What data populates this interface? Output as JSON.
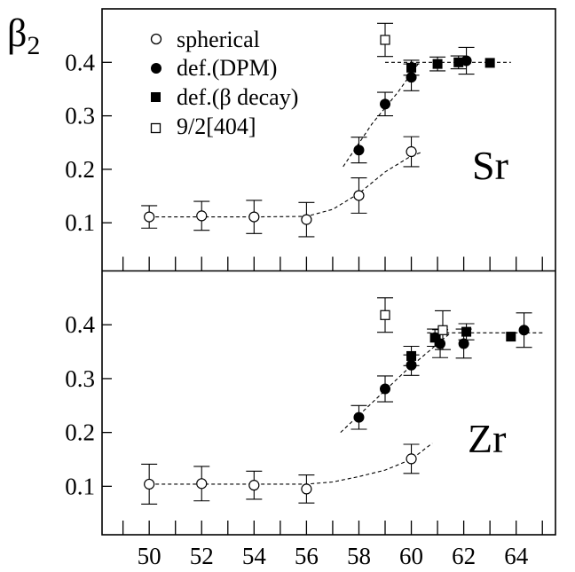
{
  "chart_data": [
    {
      "type": "scatter",
      "panel_label": "Sr",
      "ylabel": "β",
      "ylabel_subscript": "2",
      "xlim": [
        48.2,
        65.5
      ],
      "ylim": [
        0.01,
        0.5
      ],
      "ytick_labels": [
        "0.1",
        "0.2",
        "0.3",
        "0.4"
      ],
      "yticks": [
        0.1,
        0.2,
        0.3,
        0.4
      ],
      "xticks": [
        49,
        50,
        51,
        52,
        53,
        54,
        55,
        56,
        57,
        58,
        59,
        60,
        61,
        62,
        63,
        64,
        65
      ],
      "legend": [
        {
          "marker": "open-circle",
          "label": "spherical"
        },
        {
          "marker": "filled-circle",
          "label": "def.(DPM)"
        },
        {
          "marker": "filled-square",
          "label": "def.(β decay)"
        },
        {
          "marker": "open-square",
          "label": "9/2[404]"
        }
      ],
      "series": [
        {
          "name": "spherical",
          "marker": "open-circle",
          "points": [
            {
              "x": 50,
              "y": 0.111,
              "err": 0.021
            },
            {
              "x": 52,
              "y": 0.113,
              "err": 0.027
            },
            {
              "x": 54,
              "y": 0.111,
              "err": 0.031
            },
            {
              "x": 56,
              "y": 0.106,
              "err": 0.032
            },
            {
              "x": 58,
              "y": 0.151,
              "err": 0.033
            },
            {
              "x": 60,
              "y": 0.233,
              "err": 0.028
            }
          ]
        },
        {
          "name": "def.(DPM)",
          "marker": "filled-circle",
          "points": [
            {
              "x": 58,
              "y": 0.236,
              "err": 0.024
            },
            {
              "x": 59,
              "y": 0.322,
              "err": 0.022
            },
            {
              "x": 60,
              "y": 0.372,
              "err": 0.025
            },
            {
              "x": 62.1,
              "y": 0.403,
              "err": 0.025
            }
          ]
        },
        {
          "name": "def.(β decay)",
          "marker": "filled-square",
          "points": [
            {
              "x": 60,
              "y": 0.39,
              "err": 0.014
            },
            {
              "x": 61,
              "y": 0.397,
              "err": 0.013
            },
            {
              "x": 61.8,
              "y": 0.4,
              "err": 0.012
            },
            {
              "x": 63,
              "y": 0.399,
              "err": 0
            }
          ]
        },
        {
          "name": "9/2[404]",
          "marker": "open-square",
          "points": [
            {
              "x": 59,
              "y": 0.442,
              "err": 0.031
            }
          ]
        }
      ],
      "guide_lines": [
        {
          "kind": "spherical-trend",
          "points": [
            [
              50,
              0.111
            ],
            [
              54,
              0.111
            ],
            [
              56,
              0.112
            ],
            [
              57,
              0.125
            ],
            [
              58,
              0.155
            ],
            [
              59,
              0.195
            ],
            [
              60,
              0.225
            ],
            [
              60.4,
              0.232
            ]
          ]
        },
        {
          "kind": "deformation-rise",
          "points": [
            [
              57.4,
              0.205
            ],
            [
              58.5,
              0.285
            ],
            [
              59.5,
              0.345
            ],
            [
              60.3,
              0.4
            ]
          ]
        },
        {
          "kind": "saturation",
          "points": [
            [
              59,
              0.4
            ],
            [
              63.8,
              0.4
            ]
          ]
        }
      ]
    },
    {
      "type": "scatter",
      "panel_label": "Zr",
      "xlim": [
        48.2,
        65.5
      ],
      "ylim": [
        0.01,
        0.5
      ],
      "ytick_labels": [
        "0.1",
        "0.2",
        "0.3",
        "0.4"
      ],
      "yticks": [
        0.1,
        0.2,
        0.3,
        0.4
      ],
      "xtick_labels": [
        "50",
        "52",
        "54",
        "56",
        "58",
        "60",
        "62",
        "64"
      ],
      "xtick_values": [
        50,
        52,
        54,
        56,
        58,
        60,
        62,
        64
      ],
      "xticks": [
        49,
        50,
        51,
        52,
        53,
        54,
        55,
        56,
        57,
        58,
        59,
        60,
        61,
        62,
        63,
        64,
        65
      ],
      "series": [
        {
          "name": "spherical",
          "marker": "open-circle",
          "points": [
            {
              "x": 50,
              "y": 0.104,
              "err": 0.037
            },
            {
              "x": 52,
              "y": 0.105,
              "err": 0.032
            },
            {
              "x": 54,
              "y": 0.102,
              "err": 0.026
            },
            {
              "x": 56,
              "y": 0.095,
              "err": 0.026
            },
            {
              "x": 60,
              "y": 0.151,
              "err": 0.027
            }
          ]
        },
        {
          "name": "def.(DPM)",
          "marker": "filled-circle",
          "points": [
            {
              "x": 58,
              "y": 0.228,
              "err": 0.022
            },
            {
              "x": 59,
              "y": 0.281,
              "err": 0.024
            },
            {
              "x": 60,
              "y": 0.325,
              "err": 0.019
            },
            {
              "x": 61.1,
              "y": 0.365,
              "err": 0.026
            },
            {
              "x": 62,
              "y": 0.365,
              "err": 0.027
            },
            {
              "x": 64.3,
              "y": 0.39,
              "err": 0.032
            }
          ]
        },
        {
          "name": "def.(β decay)",
          "marker": "filled-square",
          "points": [
            {
              "x": 60,
              "y": 0.342,
              "err": 0.018
            },
            {
              "x": 60.9,
              "y": 0.376,
              "err": 0.016
            },
            {
              "x": 62.1,
              "y": 0.387,
              "err": 0.015
            },
            {
              "x": 63.8,
              "y": 0.378,
              "err": 0
            }
          ]
        },
        {
          "name": "9/2[404]",
          "marker": "open-square",
          "points": [
            {
              "x": 59,
              "y": 0.418,
              "err": 0.032
            },
            {
              "x": 61.2,
              "y": 0.39,
              "err": 0.036
            }
          ]
        }
      ],
      "guide_lines": [
        {
          "kind": "spherical-trend",
          "points": [
            [
              50,
              0.104
            ],
            [
              56,
              0.104
            ],
            [
              57,
              0.108
            ],
            [
              58,
              0.118
            ],
            [
              59,
              0.13
            ],
            [
              60,
              0.15
            ],
            [
              60.8,
              0.18
            ]
          ]
        },
        {
          "kind": "deformation-rise",
          "points": [
            [
              57.3,
              0.2
            ],
            [
              58.5,
              0.255
            ],
            [
              59.8,
              0.315
            ],
            [
              61.5,
              0.385
            ]
          ]
        },
        {
          "kind": "saturation",
          "points": [
            [
              60.6,
              0.385
            ],
            [
              65.1,
              0.385
            ]
          ]
        }
      ]
    }
  ]
}
